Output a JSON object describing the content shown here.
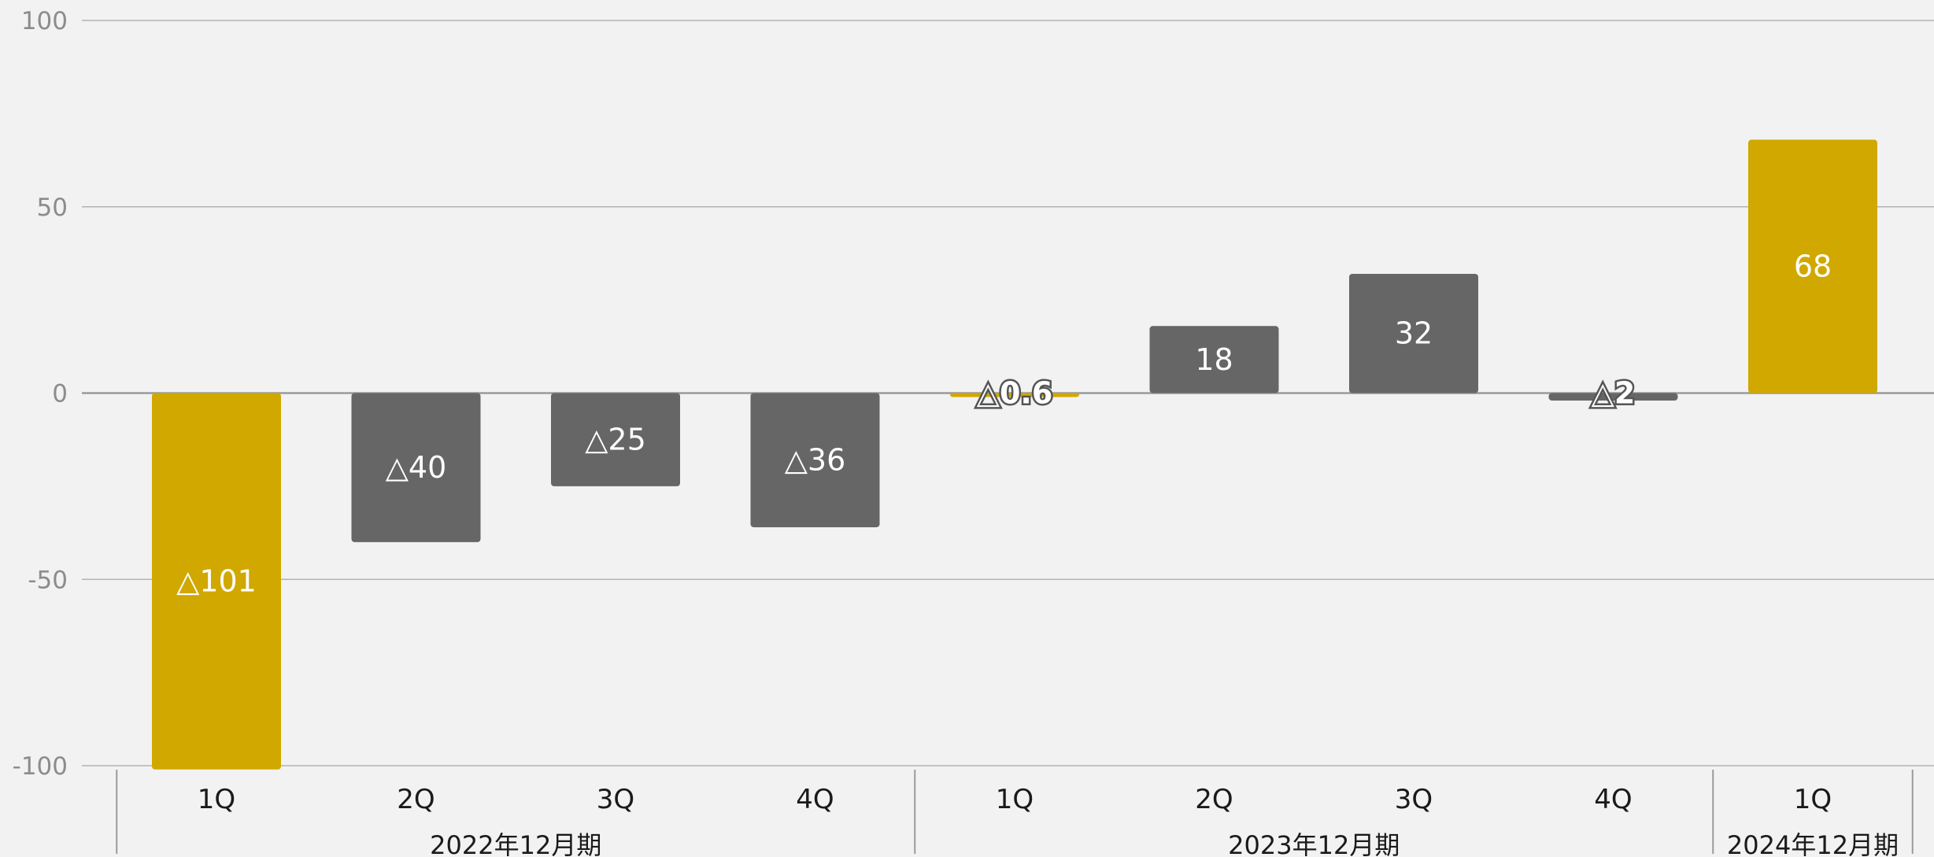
{
  "chart_data": {
    "type": "bar",
    "title": "",
    "xlabel": "",
    "ylabel": "",
    "ylim": [
      -100,
      100
    ],
    "yticks": [
      100,
      50,
      0,
      -50,
      -100
    ],
    "grid": true,
    "legend": "none",
    "categories": [
      "1Q",
      "2Q",
      "3Q",
      "4Q",
      "1Q",
      "2Q",
      "3Q",
      "4Q",
      "1Q"
    ],
    "groups": [
      {
        "label": "2022年12月期",
        "count": 4
      },
      {
        "label": "2023年12月期",
        "count": 4
      },
      {
        "label": "2024年12月期",
        "count": 1
      }
    ],
    "values": [
      -101,
      -40,
      -25,
      -36,
      -0.6,
      18,
      32,
      -2,
      68
    ],
    "value_labels": [
      "△101",
      "△40",
      "△25",
      "△36",
      "△0.6",
      "18",
      "32",
      "△2",
      "68"
    ],
    "bar_colors": [
      "#d0a800",
      "#666666",
      "#666666",
      "#666666",
      "#d0a800",
      "#666666",
      "#666666",
      "#666666",
      "#d0a800"
    ],
    "colors": {
      "highlight": "#d0a800",
      "normal": "#666666",
      "gridline": "#b3b3b3",
      "background": "#f2f2f2"
    }
  }
}
